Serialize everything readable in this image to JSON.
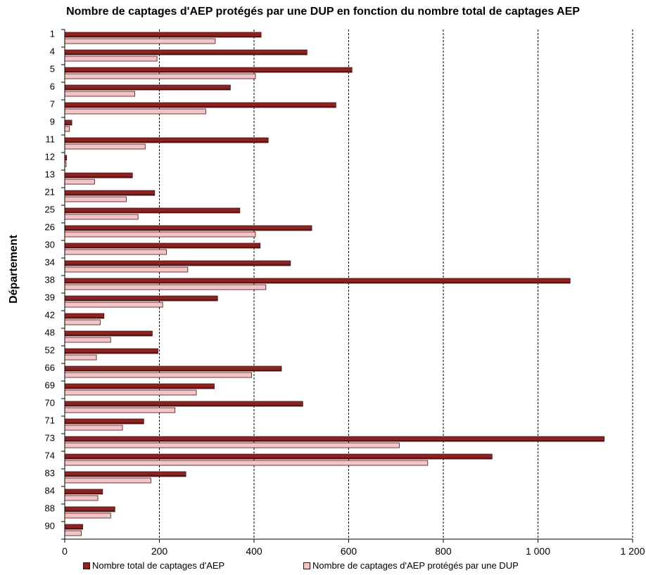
{
  "colors": {
    "total": "#8b2323",
    "protected": "#f2c6c8",
    "bar_outline": "#4a1010",
    "grid": "#000000"
  },
  "chart_data": {
    "type": "bar",
    "orientation": "horizontal",
    "title": "Nombre de captages d'AEP protégés par une DUP en fonction du nombre total de captages AEP",
    "ylabel": "Département",
    "xlabel": "",
    "xlim": [
      0,
      1200
    ],
    "xticks": [
      0,
      200,
      400,
      600,
      800,
      1000,
      1200
    ],
    "xtick_labels": [
      "0",
      "200",
      "400",
      "600",
      "800",
      "1 000",
      "1 200"
    ],
    "grid": "vertical dashed",
    "legend_position": "bottom",
    "categories": [
      "1",
      "4",
      "5",
      "6",
      "7",
      "9",
      "11",
      "12",
      "13",
      "21",
      "25",
      "26",
      "30",
      "34",
      "38",
      "39",
      "42",
      "48",
      "52",
      "66",
      "69",
      "70",
      "71",
      "73",
      "74",
      "83",
      "84",
      "88",
      "90"
    ],
    "series": [
      {
        "name": "Nombre total de captages d'AEP",
        "values": [
          415,
          512,
          607,
          350,
          573,
          15,
          430,
          4,
          143,
          190,
          370,
          522,
          413,
          477,
          1068,
          323,
          83,
          185,
          197,
          458,
          316,
          503,
          167,
          1140,
          903,
          256,
          80,
          106,
          38
        ]
      },
      {
        "name": "Nombre de captages d'AEP protégés par une DUP",
        "values": [
          318,
          195,
          403,
          148,
          298,
          10,
          170,
          3,
          63,
          130,
          155,
          403,
          215,
          260,
          425,
          207,
          75,
          97,
          67,
          395,
          278,
          233,
          122,
          707,
          767,
          182,
          70,
          97,
          35
        ]
      }
    ]
  }
}
